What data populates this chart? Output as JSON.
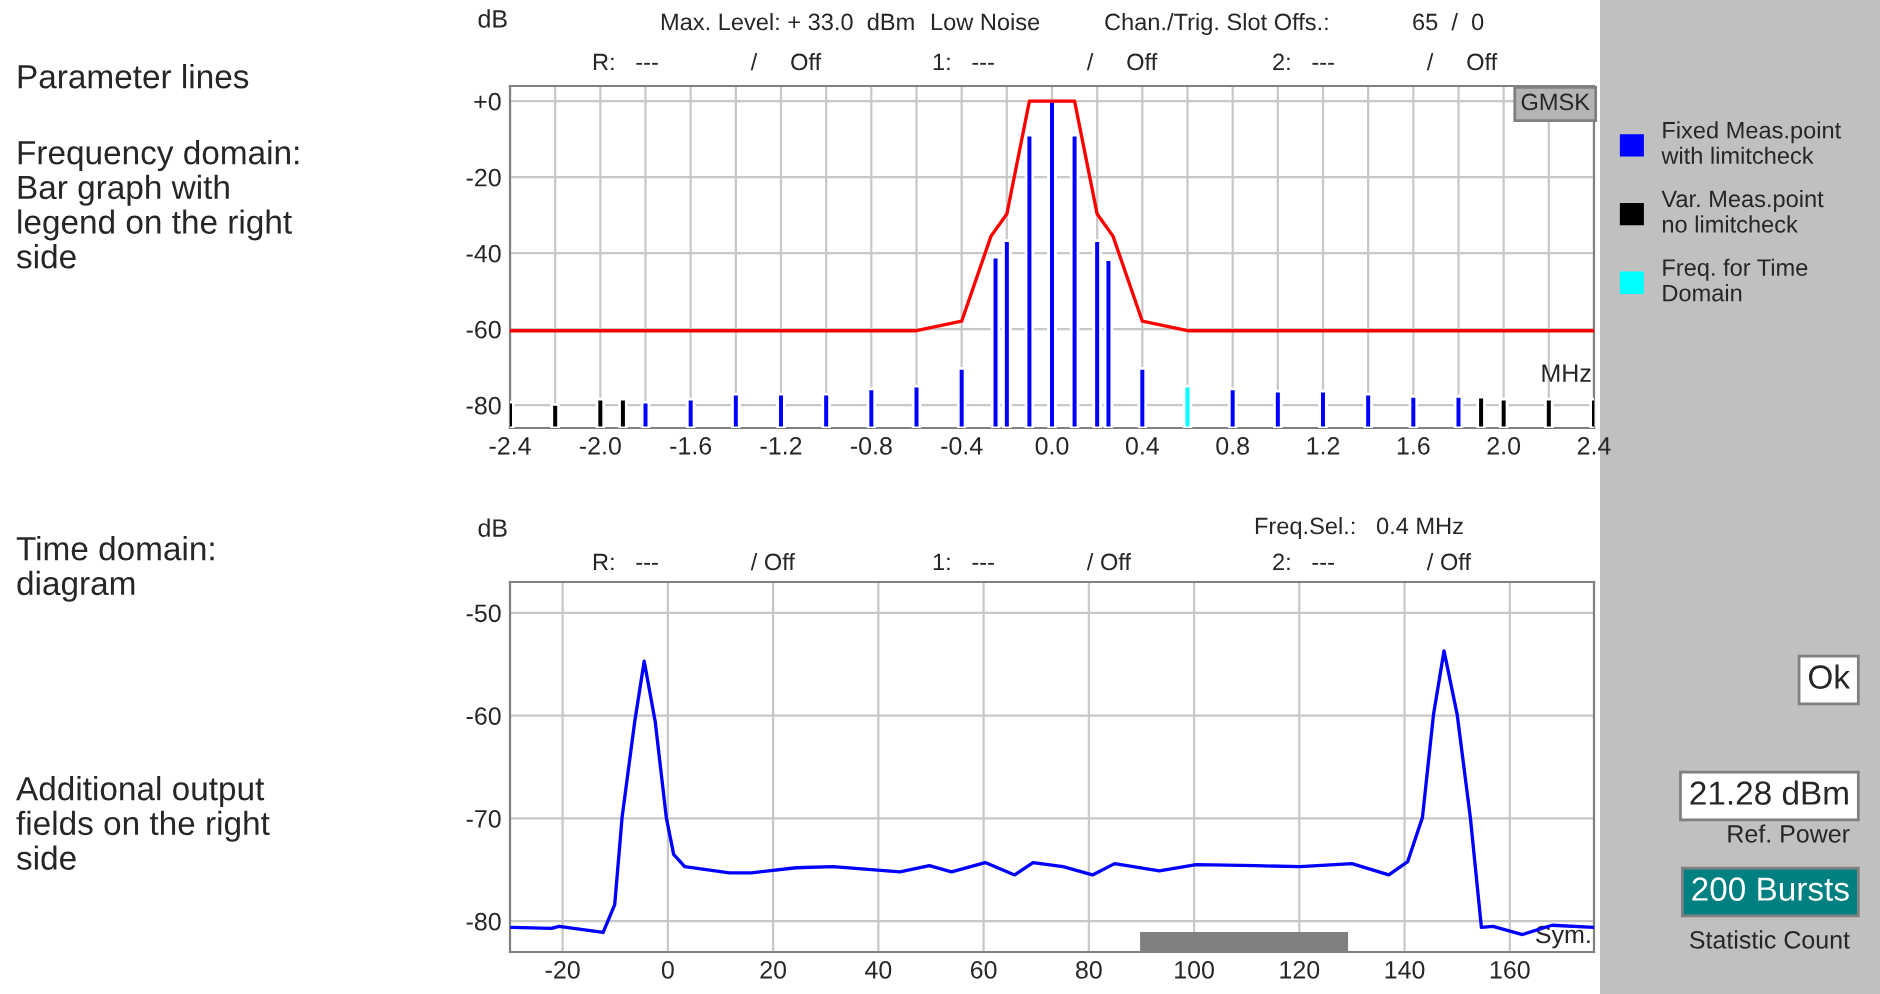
{
  "chart_data": [
    {
      "type": "bar",
      "ylabel": "dB",
      "xlabel": "MHz",
      "series": [
        {
          "name": "Fixed Meas.point\nwith limitcheck",
          "color": "#0000ff",
          "x": [
            -1.8,
            -1.6,
            -1.4,
            -1.2,
            -1.0,
            -0.8,
            -0.6,
            -0.4,
            -0.25,
            -0.2,
            -0.1,
            0.0,
            0.1,
            0.2,
            0.25,
            0.4,
            0.8,
            1.0,
            1.2,
            1.4,
            1.6,
            1.8
          ],
          "base": [
            -86,
            -86,
            -86,
            -86,
            -86,
            -86,
            -86,
            -86,
            -86,
            -86,
            -86,
            -86,
            -86,
            -86,
            -86,
            -86,
            -86,
            -86,
            -86,
            -86,
            -86,
            -86
          ],
          "values": [
            6.8,
            7.6,
            8.9,
            8.9,
            8.9,
            10.3,
            11.0,
            15.7,
            45.0,
            49.3,
            77.1,
            86.0,
            77.1,
            49.3,
            44.3,
            15.7,
            10.3,
            9.7,
            9.7,
            8.9,
            8.3,
            8.3
          ]
        },
        {
          "name": "Var. Meas.point\nno limitcheck",
          "color": "#000000",
          "x": [
            -2.4,
            -2.2,
            -2.0,
            -1.9,
            1.9,
            2.0,
            2.2,
            2.4
          ],
          "base": [
            -86,
            -86,
            -86,
            -86,
            -86,
            -86,
            -86,
            -86
          ],
          "values": [
            6.8,
            6.2,
            7.6,
            7.6,
            8.1,
            7.6,
            7.6,
            7.6
          ]
        },
        {
          "name": "Freq. for Time\nDomain",
          "color": "#00ffff",
          "x": [
            0.6
          ],
          "base": [
            -86
          ],
          "values": [
            11.0
          ]
        },
        {
          "type": "line",
          "color": "#ff0000",
          "x": [
            -2.4,
            -0.6,
            -0.4,
            -0.27,
            -0.2,
            -0.1,
            0.1,
            0.2,
            0.27,
            0.4,
            0.6,
            2.4
          ],
          "values": [
            -60.4,
            -60.4,
            -57.9,
            -35.5,
            -29.7,
            0.0,
            0.0,
            -29.7,
            -35.5,
            -57.9,
            -60.4,
            -60.4
          ]
        }
      ],
      "xlim": [
        -2.4,
        2.4
      ],
      "xticks": [
        -2.4,
        {
          "value": -2.2,
          "label": null
        },
        {
          "value": -2.0,
          "label": "-2.0"
        },
        {
          "value": -1.8,
          "label": null
        },
        -1.6,
        {
          "value": -1.4,
          "label": null
        },
        -1.2,
        {
          "value": -1.0,
          "label": null
        },
        -0.8,
        {
          "value": -0.6,
          "label": null
        },
        -0.4,
        {
          "value": -0.2,
          "label": null
        },
        {
          "value": 0.0,
          "label": "0.0"
        },
        {
          "value": 0.2,
          "label": null
        },
        0.4,
        {
          "value": 0.6,
          "label": null
        },
        0.8,
        {
          "value": 1.0,
          "label": null
        },
        1.2,
        {
          "value": 1.4,
          "label": null
        },
        1.6,
        {
          "value": 1.8,
          "label": null
        },
        {
          "value": 2.0,
          "label": "2.0"
        },
        {
          "value": 2.2,
          "label": null
        },
        2.4
      ],
      "ylim": [
        -86,
        4
      ],
      "yticks": [
        {
          "value": 0,
          "label": "+0"
        },
        -20,
        -40,
        -60,
        -80
      ],
      "grid": true,
      "legend": "right",
      "annotations": [
        "Parameter lines",
        "Frequency domain:\nBar graph with\nlegend on the right\nside",
        "Max. Level: + 33.0  dBm",
        "Low Noise",
        "Chan./Trig. Slot Offs.:",
        "65  /  0",
        "R:   ---              /     Off",
        "1:   ---              /     Off",
        "2:   ---              /     Off",
        "GMSK"
      ]
    },
    {
      "type": "line",
      "ylabel": "dB",
      "xlabel": "Sym.",
      "series": [
        {
          "color": "#0000ff",
          "x": [
            -29.7,
            -22.1,
            -20.7,
            -12.3,
            -10.1,
            -8.7,
            -6.3,
            -4.5,
            -2.4,
            -0.3,
            1.1,
            3.2,
            11.7,
            15.9,
            24.4,
            31.4,
            44.1,
            49.7,
            53.9,
            60.3,
            65.9,
            69.4,
            75.1,
            80.7,
            84.9,
            93.4,
            100.4,
            111.7,
            120.1,
            130,
            137,
            140.6,
            143.4,
            145.5,
            147.5,
            150,
            152.5,
            154.6,
            156.8,
            162.4,
            168,
            176
          ],
          "values": [
            -80.6,
            -80.7,
            -80.5,
            -81.1,
            -78.4,
            -69.9,
            -60.6,
            -54.7,
            -60.6,
            -69.9,
            -73.5,
            -74.7,
            -75.3,
            -75.3,
            -74.8,
            -74.7,
            -75.2,
            -74.6,
            -75.2,
            -74.3,
            -75.5,
            -74.3,
            -74.7,
            -75.5,
            -74.4,
            -75.1,
            -74.5,
            -74.6,
            -74.7,
            -74.4,
            -75.5,
            -74.2,
            -69.9,
            -59.9,
            -53.7,
            -59.9,
            -69.9,
            -80.6,
            -80.5,
            -81.3,
            -80.4,
            -80.6
          ]
        }
      ],
      "xlim": [
        -30,
        176
      ],
      "xticks": [
        -20,
        0,
        20,
        40,
        60,
        80,
        100,
        120,
        140,
        160
      ],
      "ylim": [
        -83,
        -47
      ],
      "yticks": [
        -50,
        -60,
        -70,
        -80
      ],
      "grid": true,
      "bands": [
        {
          "axis": "x",
          "from": 90,
          "to": 129,
          "color": "#808080"
        }
      ],
      "annotations": [
        "Time domain:\ndiagram",
        "Additional output\nfields on the right\nside",
        "Freq.Sel.:   0.4 MHz",
        "R:   ---              / Off",
        "1:   ---              / Off",
        "2:   ---              / Off",
        "Ok",
        "21.28 dBm",
        "Ref. Power",
        "200 Bursts",
        "Statistic Count"
      ]
    }
  ]
}
